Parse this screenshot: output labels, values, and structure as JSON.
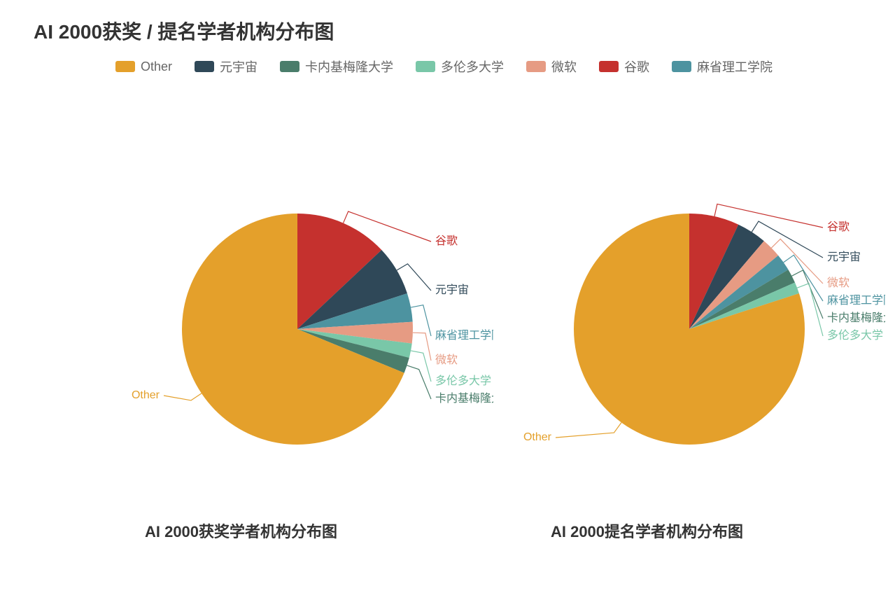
{
  "title": "AI 2000获奖 / 提名学者机构分布图",
  "background_color": "#ffffff",
  "legend_fontsize": 18,
  "legend_color": "#666666",
  "title_fontsize": 28,
  "title_color": "#333333",
  "subtitle_fontsize": 22,
  "subtitle_color": "#333333",
  "callout_fontsize": 16,
  "pie_radius": 165,
  "categories": [
    {
      "key": "other",
      "label": "Other",
      "color": "#e4a02b"
    },
    {
      "key": "meta",
      "label": "元宇宙",
      "color": "#2f4858"
    },
    {
      "key": "cmu",
      "label": "卡内基梅隆大学",
      "color": "#4a7d6b"
    },
    {
      "key": "toronto",
      "label": "多伦多大学",
      "color": "#79c7a8"
    },
    {
      "key": "ms",
      "label": "微软",
      "color": "#e69b83"
    },
    {
      "key": "google",
      "label": "谷歌",
      "color": "#c5312e"
    },
    {
      "key": "mit",
      "label": "麻省理工学院",
      "color": "#4d93a0"
    }
  ],
  "charts": [
    {
      "subtitle": "AI 2000获奖学者机构分布图",
      "type": "pie",
      "start_angle_deg": -90,
      "slices": [
        {
          "key": "google",
          "label": "谷歌",
          "value": 13.0,
          "label_y_offset": -125
        },
        {
          "key": "meta",
          "label": "元宇宙",
          "value": 7.0,
          "label_y_offset": -55
        },
        {
          "key": "mit",
          "label": "麻省理工学院",
          "value": 4.0,
          "label_y_offset": 10
        },
        {
          "key": "ms",
          "label": "微软",
          "value": 3.0,
          "label_y_offset": 45
        },
        {
          "key": "toronto",
          "label": "多伦多大学",
          "value": 2.0,
          "label_y_offset": 75
        },
        {
          "key": "cmu",
          "label": "卡内基梅隆大学",
          "value": 2.2,
          "label_y_offset": 100
        },
        {
          "key": "other",
          "label": "Other",
          "value": 68.8,
          "label_side": "left",
          "label_y_offset": 95
        }
      ]
    },
    {
      "subtitle": "AI 2000提名学者机构分布图",
      "type": "pie",
      "start_angle_deg": -90,
      "slices": [
        {
          "key": "google",
          "label": "谷歌",
          "value": 7.0,
          "label_y_offset": -145
        },
        {
          "key": "meta",
          "label": "元宇宙",
          "value": 4.2,
          "label_y_offset": -102
        },
        {
          "key": "ms",
          "label": "微软",
          "value": 2.8,
          "label_y_offset": -65
        },
        {
          "key": "mit",
          "label": "麻省理工学院",
          "value": 2.4,
          "label_y_offset": -40
        },
        {
          "key": "cmu",
          "label": "卡内基梅隆大学",
          "value": 2.0,
          "label_y_offset": -15
        },
        {
          "key": "toronto",
          "label": "多伦多大学",
          "value": 1.6,
          "label_y_offset": 10
        },
        {
          "key": "other",
          "label": "Other",
          "value": 80.0,
          "label_side": "left",
          "label_y_offset": 155
        }
      ]
    }
  ]
}
